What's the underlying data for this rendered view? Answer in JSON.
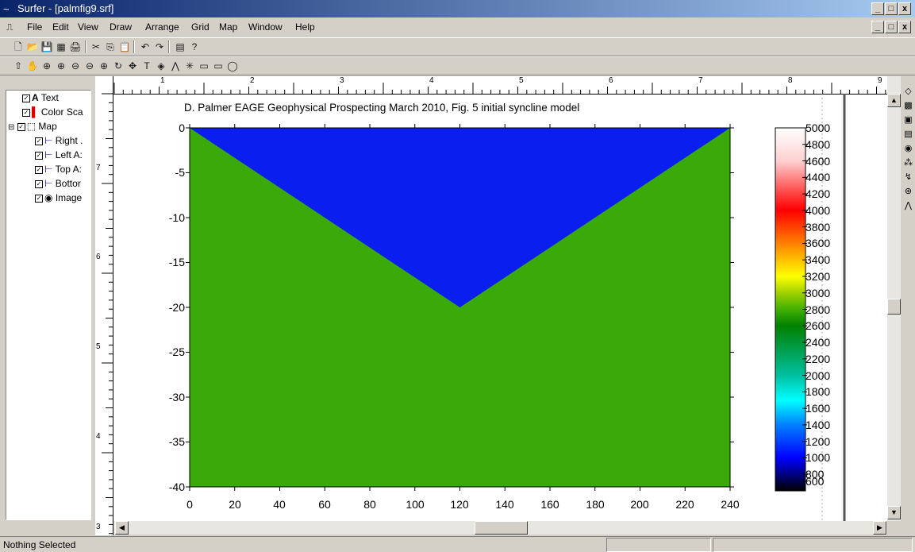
{
  "window": {
    "title": "Surfer - [palmfig9.srf]",
    "min": "_",
    "max": "□",
    "close": "x"
  },
  "menu": [
    "File",
    "Edit",
    "View",
    "Draw",
    "Arrange",
    "Grid",
    "Map",
    "Window",
    "Help"
  ],
  "toolbar1": [
    "🗋",
    "📂",
    "💾",
    "▦",
    "🖨",
    "✂",
    "⎘",
    "📋",
    "↶",
    "↷",
    "▤",
    "?"
  ],
  "toolbar2": [
    "⇧",
    "✋",
    "⊕",
    "⊕",
    "⊖",
    "⊖",
    "⊕",
    "↻",
    "✥",
    "T",
    "◈",
    "⋀",
    "✳",
    "▭",
    "▭",
    "◯"
  ],
  "tree": {
    "items": [
      {
        "label": "Text",
        "icon": "A"
      },
      {
        "label": "Color Sca",
        "icon": "▌"
      },
      {
        "label": "Map",
        "icon": "⬚"
      },
      {
        "label": "Right .",
        "icon": "⊢"
      },
      {
        "label": "Left A:",
        "icon": "⊢"
      },
      {
        "label": "Top A:",
        "icon": "⊢"
      },
      {
        "label": "Bottor",
        "icon": "⊢"
      },
      {
        "label": "Image",
        "icon": "◉"
      }
    ]
  },
  "ruler_top": [
    "1",
    "2",
    "3",
    "4",
    "5",
    "6",
    "7",
    "8",
    "9"
  ],
  "ruler_left": [
    "7",
    "6",
    "5",
    "4",
    "3"
  ],
  "map": {
    "title": "D. Palmer EAGE Geophysical Prospecting March 2010, Fig. 5 initial syncline model",
    "fill_colors": {
      "top": "#0a1ef0",
      "bottom": "#3aaa0a"
    },
    "y_ticks": [
      "0",
      "-5",
      "-10",
      "-15",
      "-20",
      "-25",
      "-30",
      "-35",
      "-40"
    ],
    "x_ticks": [
      "0",
      "20",
      "40",
      "60",
      "80",
      "100",
      "120",
      "140",
      "160",
      "180",
      "200",
      "220",
      "240"
    ],
    "colorscale_labels": [
      "5000",
      "4800",
      "4600",
      "4400",
      "4200",
      "4000",
      "3800",
      "3600",
      "3400",
      "3200",
      "3000",
      "2800",
      "2600",
      "2400",
      "2200",
      "2000",
      "1800",
      "1600",
      "1400",
      "1200",
      "1000",
      "800",
      "600"
    ]
  },
  "chart_data": {
    "type": "heatmap",
    "title": "D. Palmer EAGE Geophysical Prospecting March 2010, Fig. 5 initial syncline model",
    "xlim": [
      0,
      240
    ],
    "ylim": [
      -40,
      0
    ],
    "syncline_boundary": {
      "x": [
        0,
        120,
        240
      ],
      "y": [
        0,
        -20,
        0
      ]
    },
    "layers": [
      {
        "region": "above boundary",
        "color": "#0a1ef0",
        "value": 1000
      },
      {
        "region": "below boundary",
        "color": "#3aaa0a",
        "value": 2800
      }
    ],
    "colorscale": {
      "min": 600,
      "max": 5000
    }
  },
  "status": {
    "text": "Nothing Selected"
  },
  "right_tools": [
    "◇",
    "▩",
    "▣",
    "▤",
    "◉",
    "⁂",
    "↯",
    "⊛",
    "⋀"
  ]
}
